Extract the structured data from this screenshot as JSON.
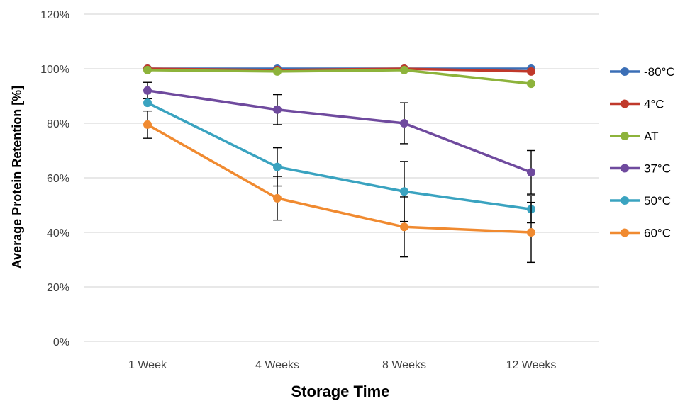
{
  "chart_data": {
    "type": "line",
    "title": "",
    "xlabel": "Storage Time",
    "ylabel": "Average Protein Retention [%]",
    "categories": [
      "1 Week",
      "4 Weeks",
      "8 Weeks",
      "12 Weeks"
    ],
    "ylim": [
      0,
      120
    ],
    "y_ticks": [
      0,
      20,
      40,
      60,
      80,
      100,
      120
    ],
    "y_tick_labels": [
      "0%",
      "20%",
      "40%",
      "60%",
      "80%",
      "100%",
      "120%"
    ],
    "grid": true,
    "legend_position": "right",
    "series": [
      {
        "name": "-80°C",
        "color": "#3b6fb6",
        "values": [
          100,
          100,
          100,
          100
        ],
        "errors": null
      },
      {
        "name": "4°C",
        "color": "#c0392b",
        "values": [
          100,
          99.5,
          100,
          99
        ],
        "errors": null
      },
      {
        "name": "AT",
        "color": "#8db33b",
        "values": [
          99.5,
          99,
          99.5,
          94.5
        ],
        "errors": null
      },
      {
        "name": "37°C",
        "color": "#6f4a9e",
        "values": [
          92,
          85,
          80,
          62
        ],
        "errors": [
          3,
          5.5,
          7.5,
          8
        ]
      },
      {
        "name": "50°C",
        "color": "#3aa3c0",
        "values": [
          87.5,
          64,
          55,
          48.5
        ],
        "errors": [
          null,
          7,
          11,
          5
        ]
      },
      {
        "name": "60°C",
        "color": "#f08a30",
        "values": [
          79.5,
          52.5,
          42,
          40
        ],
        "errors": [
          5,
          8,
          11,
          11
        ]
      }
    ]
  }
}
